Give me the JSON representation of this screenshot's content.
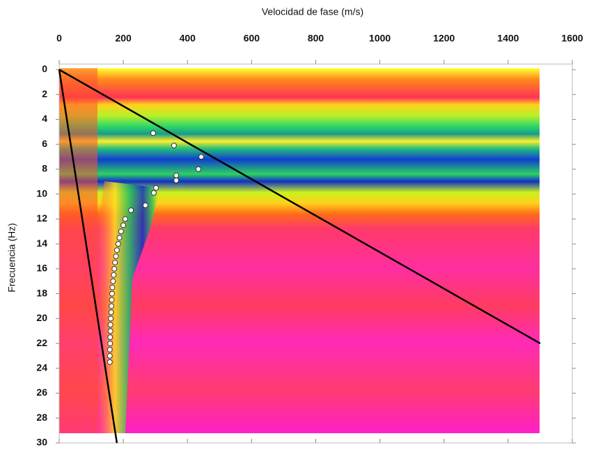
{
  "chart_data": {
    "type": "scatter",
    "x_label": "Velocidad de fase (m/s)",
    "y_label": "Frecuencia (Hz)",
    "xlim": [
      0,
      1600
    ],
    "ylim": [
      0,
      30
    ],
    "y_inverted": true,
    "x_axis_position": "top",
    "xticks": [
      0,
      200,
      400,
      600,
      800,
      1000,
      1200,
      1400,
      1600
    ],
    "yticks": [
      0,
      2,
      4,
      6,
      8,
      10,
      12,
      14,
      16,
      18,
      20,
      22,
      24,
      26,
      28,
      30
    ],
    "series": [
      {
        "type": "scatter",
        "color": "#ffffff",
        "x": [
          293,
          358,
          443,
          434,
          365,
          365,
          302,
          295,
          269,
          224,
          206,
          200,
          193,
          188,
          184,
          180,
          177,
          174,
          172,
          170,
          168,
          166,
          165,
          164,
          163,
          162,
          161,
          160,
          160,
          159,
          159,
          158,
          158,
          158
        ],
        "y": [
          5.1,
          6.1,
          7.0,
          8.0,
          8.5,
          8.9,
          9.5,
          9.9,
          10.9,
          11.3,
          12.0,
          12.5,
          13,
          13.5,
          14,
          14.5,
          15,
          15.5,
          16,
          16.5,
          17,
          17.5,
          18,
          18.5,
          19,
          19.5,
          20,
          20.5,
          21,
          21.5,
          22,
          22.5,
          23,
          23.5
        ]
      },
      {
        "type": "line",
        "color": "#000000",
        "x": [
          0,
          1500
        ],
        "y": [
          0,
          22
        ]
      },
      {
        "type": "line",
        "color": "#000000",
        "x": [
          0,
          180
        ],
        "y": [
          0,
          30
        ]
      }
    ]
  }
}
